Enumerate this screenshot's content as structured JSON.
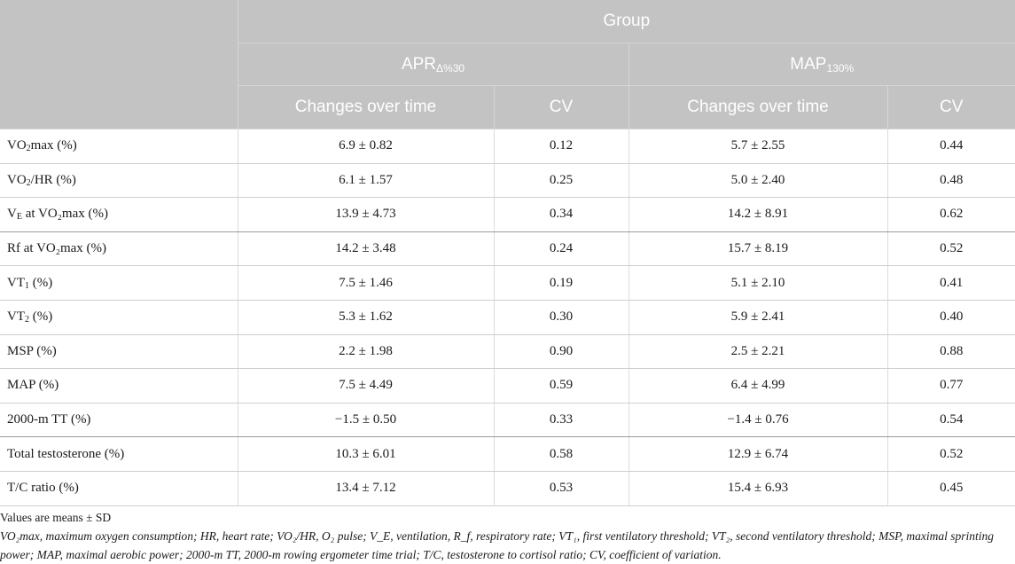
{
  "header": {
    "group": "Group",
    "col_group_1": {
      "base": "APR",
      "sub": "Δ%30"
    },
    "col_group_2": {
      "base": "MAP",
      "sub": "130%"
    },
    "changes": "Changes over time",
    "cv": "CV"
  },
  "rows": [
    {
      "pre": "VO",
      "sub": "2",
      "post": "max (%)",
      "apr_change": "6.9 ± 0.82",
      "apr_cv": "0.12",
      "map_change": "5.7 ± 2.55",
      "map_cv": "0.44"
    },
    {
      "pre": "VO",
      "sub": "2",
      "post": "/HR (%)",
      "apr_change": "6.1 ± 1.57",
      "apr_cv": "0.25",
      "map_change": "5.0 ± 2.40",
      "map_cv": "0.48"
    },
    {
      "pre": "V",
      "sub": "E",
      "post": " at VO₂max (%)",
      "apr_change": "13.9 ± 4.73",
      "apr_cv": "0.34",
      "map_change": "14.2 ± 8.91",
      "map_cv": "0.62"
    },
    {
      "pre": "R",
      "sub": "",
      "post": "f at VO₂max (%)",
      "apr_change": "14.2 ± 3.48",
      "apr_cv": "0.24",
      "map_change": "15.7 ± 8.19",
      "map_cv": "0.52"
    },
    {
      "pre": "VT",
      "sub": "1",
      "post": " (%)",
      "apr_change": "7.5 ± 1.46",
      "apr_cv": "0.19",
      "map_change": "5.1 ± 2.10",
      "map_cv": "0.41"
    },
    {
      "pre": "VT",
      "sub": "2",
      "post": " (%)",
      "apr_change": "5.3 ± 1.62",
      "apr_cv": "0.30",
      "map_change": "5.9 ± 2.41",
      "map_cv": "0.40"
    },
    {
      "pre": "MSP (%)",
      "sub": "",
      "post": "",
      "apr_change": "2.2 ± 1.98",
      "apr_cv": "0.90",
      "map_change": "2.5 ± 2.21",
      "map_cv": "0.88"
    },
    {
      "pre": "MAP (%)",
      "sub": "",
      "post": "",
      "apr_change": "7.5 ± 4.49",
      "apr_cv": "0.59",
      "map_change": "6.4 ± 4.99",
      "map_cv": "0.77"
    },
    {
      "pre": "2000-m TT (%)",
      "sub": "",
      "post": "",
      "apr_change": "−1.5 ± 0.50",
      "apr_cv": "0.33",
      "map_change": "−1.4 ± 0.76",
      "map_cv": "0.54"
    },
    {
      "pre": "Total testosterone (%)",
      "sub": "",
      "post": "",
      "apr_change": "10.3 ± 6.01",
      "apr_cv": "0.58",
      "map_change": "12.9 ± 6.74",
      "map_cv": "0.52"
    },
    {
      "pre": "T/C ratio (%)",
      "sub": "",
      "post": "",
      "apr_change": "13.4 ± 7.12",
      "apr_cv": "0.53",
      "map_change": "15.4 ± 6.93",
      "map_cv": "0.45"
    }
  ],
  "footnotes": {
    "note1": "Values are means ± SD",
    "note2": "VO₂max, maximum oxygen consumption; HR, heart rate; VO₂/HR, O₂ pulse; V_E, ventilation, R_f, respiratory rate; VT₁, first ventilatory threshold; VT₂, second ventilatory threshold; MSP, maximal sprinting power; MAP, maximal aerobic power; 2000-m TT, 2000-m rowing ergometer time trial; T/C, testosterone to cortisol ratio; CV, coefficient of variation."
  }
}
